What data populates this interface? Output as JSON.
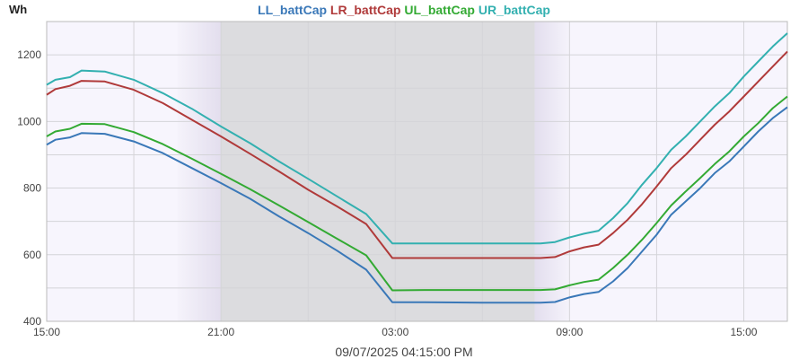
{
  "chart_data": {
    "type": "line",
    "ylabel": "Wh",
    "xlim_hours": [
      15,
      40.5
    ],
    "ylim": [
      400,
      1300
    ],
    "y_ticks": [
      400,
      600,
      800,
      1000,
      1200
    ],
    "x_ticks": [
      {
        "h": 15,
        "label": "15:00"
      },
      {
        "h": 21,
        "label": "21:00"
      },
      {
        "h": 27,
        "label": "03:00"
      },
      {
        "h": 33,
        "label": "09:00"
      },
      {
        "h": 39,
        "label": "15:00"
      }
    ],
    "night_shading": {
      "twilight_start": 19.5,
      "night_start": 21.0,
      "night_end": 31.8,
      "twilight_end": 33.0
    },
    "timestamp": "09/07/2025 04:15:00 PM",
    "series": [
      {
        "name": "LL_battCap",
        "color": "#3a78b8",
        "points": [
          [
            15,
            930
          ],
          [
            15.3,
            945
          ],
          [
            15.8,
            952
          ],
          [
            16.2,
            965
          ],
          [
            17,
            963
          ],
          [
            18,
            940
          ],
          [
            19,
            905
          ],
          [
            20,
            860
          ],
          [
            21,
            815
          ],
          [
            22,
            768
          ],
          [
            23,
            715
          ],
          [
            24,
            665
          ],
          [
            25,
            612
          ],
          [
            26,
            555
          ],
          [
            26.9,
            457
          ],
          [
            28,
            457
          ],
          [
            30,
            456
          ],
          [
            31,
            456
          ],
          [
            32,
            456
          ],
          [
            32.5,
            458
          ],
          [
            33,
            472
          ],
          [
            33.5,
            482
          ],
          [
            34,
            488
          ],
          [
            34.5,
            520
          ],
          [
            35,
            560
          ],
          [
            35.5,
            610
          ],
          [
            36,
            660
          ],
          [
            36.5,
            720
          ],
          [
            37,
            760
          ],
          [
            37.5,
            800
          ],
          [
            38,
            845
          ],
          [
            38.5,
            880
          ],
          [
            39,
            925
          ],
          [
            39.5,
            970
          ],
          [
            40,
            1010
          ],
          [
            40.5,
            1043
          ]
        ]
      },
      {
        "name": "LR_battCap",
        "color": "#b03a3a",
        "points": [
          [
            15,
            1080
          ],
          [
            15.3,
            1097
          ],
          [
            15.8,
            1107
          ],
          [
            16.2,
            1122
          ],
          [
            17,
            1120
          ],
          [
            18,
            1095
          ],
          [
            19,
            1055
          ],
          [
            20,
            1005
          ],
          [
            21,
            955
          ],
          [
            22,
            903
          ],
          [
            23,
            850
          ],
          [
            24,
            795
          ],
          [
            25,
            745
          ],
          [
            26,
            692
          ],
          [
            26.9,
            590
          ],
          [
            28,
            590
          ],
          [
            30,
            590
          ],
          [
            31,
            590
          ],
          [
            32,
            590
          ],
          [
            32.5,
            593
          ],
          [
            33,
            610
          ],
          [
            33.5,
            622
          ],
          [
            34,
            630
          ],
          [
            34.5,
            665
          ],
          [
            35,
            705
          ],
          [
            35.5,
            752
          ],
          [
            36,
            805
          ],
          [
            36.5,
            860
          ],
          [
            37,
            900
          ],
          [
            37.5,
            945
          ],
          [
            38,
            990
          ],
          [
            38.5,
            1030
          ],
          [
            39,
            1075
          ],
          [
            39.5,
            1120
          ],
          [
            40,
            1165
          ],
          [
            40.5,
            1210
          ]
        ]
      },
      {
        "name": "UL_battCap",
        "color": "#33aa33",
        "points": [
          [
            15,
            955
          ],
          [
            15.3,
            970
          ],
          [
            15.8,
            978
          ],
          [
            16.2,
            993
          ],
          [
            17,
            992
          ],
          [
            18,
            968
          ],
          [
            19,
            932
          ],
          [
            20,
            888
          ],
          [
            21,
            843
          ],
          [
            22,
            797
          ],
          [
            23,
            748
          ],
          [
            24,
            698
          ],
          [
            25,
            648
          ],
          [
            26,
            598
          ],
          [
            26.9,
            493
          ],
          [
            28,
            494
          ],
          [
            30,
            494
          ],
          [
            31,
            494
          ],
          [
            32,
            494
          ],
          [
            32.5,
            496
          ],
          [
            33,
            508
          ],
          [
            33.5,
            518
          ],
          [
            34,
            525
          ],
          [
            34.5,
            560
          ],
          [
            35,
            600
          ],
          [
            35.5,
            645
          ],
          [
            36,
            695
          ],
          [
            36.5,
            748
          ],
          [
            37,
            790
          ],
          [
            37.5,
            830
          ],
          [
            38,
            872
          ],
          [
            38.5,
            910
          ],
          [
            39,
            955
          ],
          [
            39.5,
            995
          ],
          [
            40,
            1040
          ],
          [
            40.5,
            1075
          ]
        ]
      },
      {
        "name": "UR_battCap",
        "color": "#33b0b0",
        "points": [
          [
            15,
            1110
          ],
          [
            15.3,
            1125
          ],
          [
            15.8,
            1133
          ],
          [
            16.2,
            1153
          ],
          [
            17,
            1150
          ],
          [
            18,
            1125
          ],
          [
            19,
            1085
          ],
          [
            20,
            1038
          ],
          [
            21,
            985
          ],
          [
            22,
            935
          ],
          [
            23,
            880
          ],
          [
            24,
            828
          ],
          [
            25,
            775
          ],
          [
            26,
            722
          ],
          [
            26.9,
            634
          ],
          [
            28,
            634
          ],
          [
            30,
            634
          ],
          [
            31,
            634
          ],
          [
            32,
            634
          ],
          [
            32.5,
            638
          ],
          [
            33,
            652
          ],
          [
            33.5,
            663
          ],
          [
            34,
            672
          ],
          [
            34.5,
            710
          ],
          [
            35,
            755
          ],
          [
            35.5,
            810
          ],
          [
            36,
            860
          ],
          [
            36.5,
            915
          ],
          [
            37,
            955
          ],
          [
            37.5,
            1000
          ],
          [
            38,
            1045
          ],
          [
            38.5,
            1085
          ],
          [
            39,
            1135
          ],
          [
            39.5,
            1180
          ],
          [
            40,
            1225
          ],
          [
            40.5,
            1265
          ]
        ]
      }
    ]
  }
}
